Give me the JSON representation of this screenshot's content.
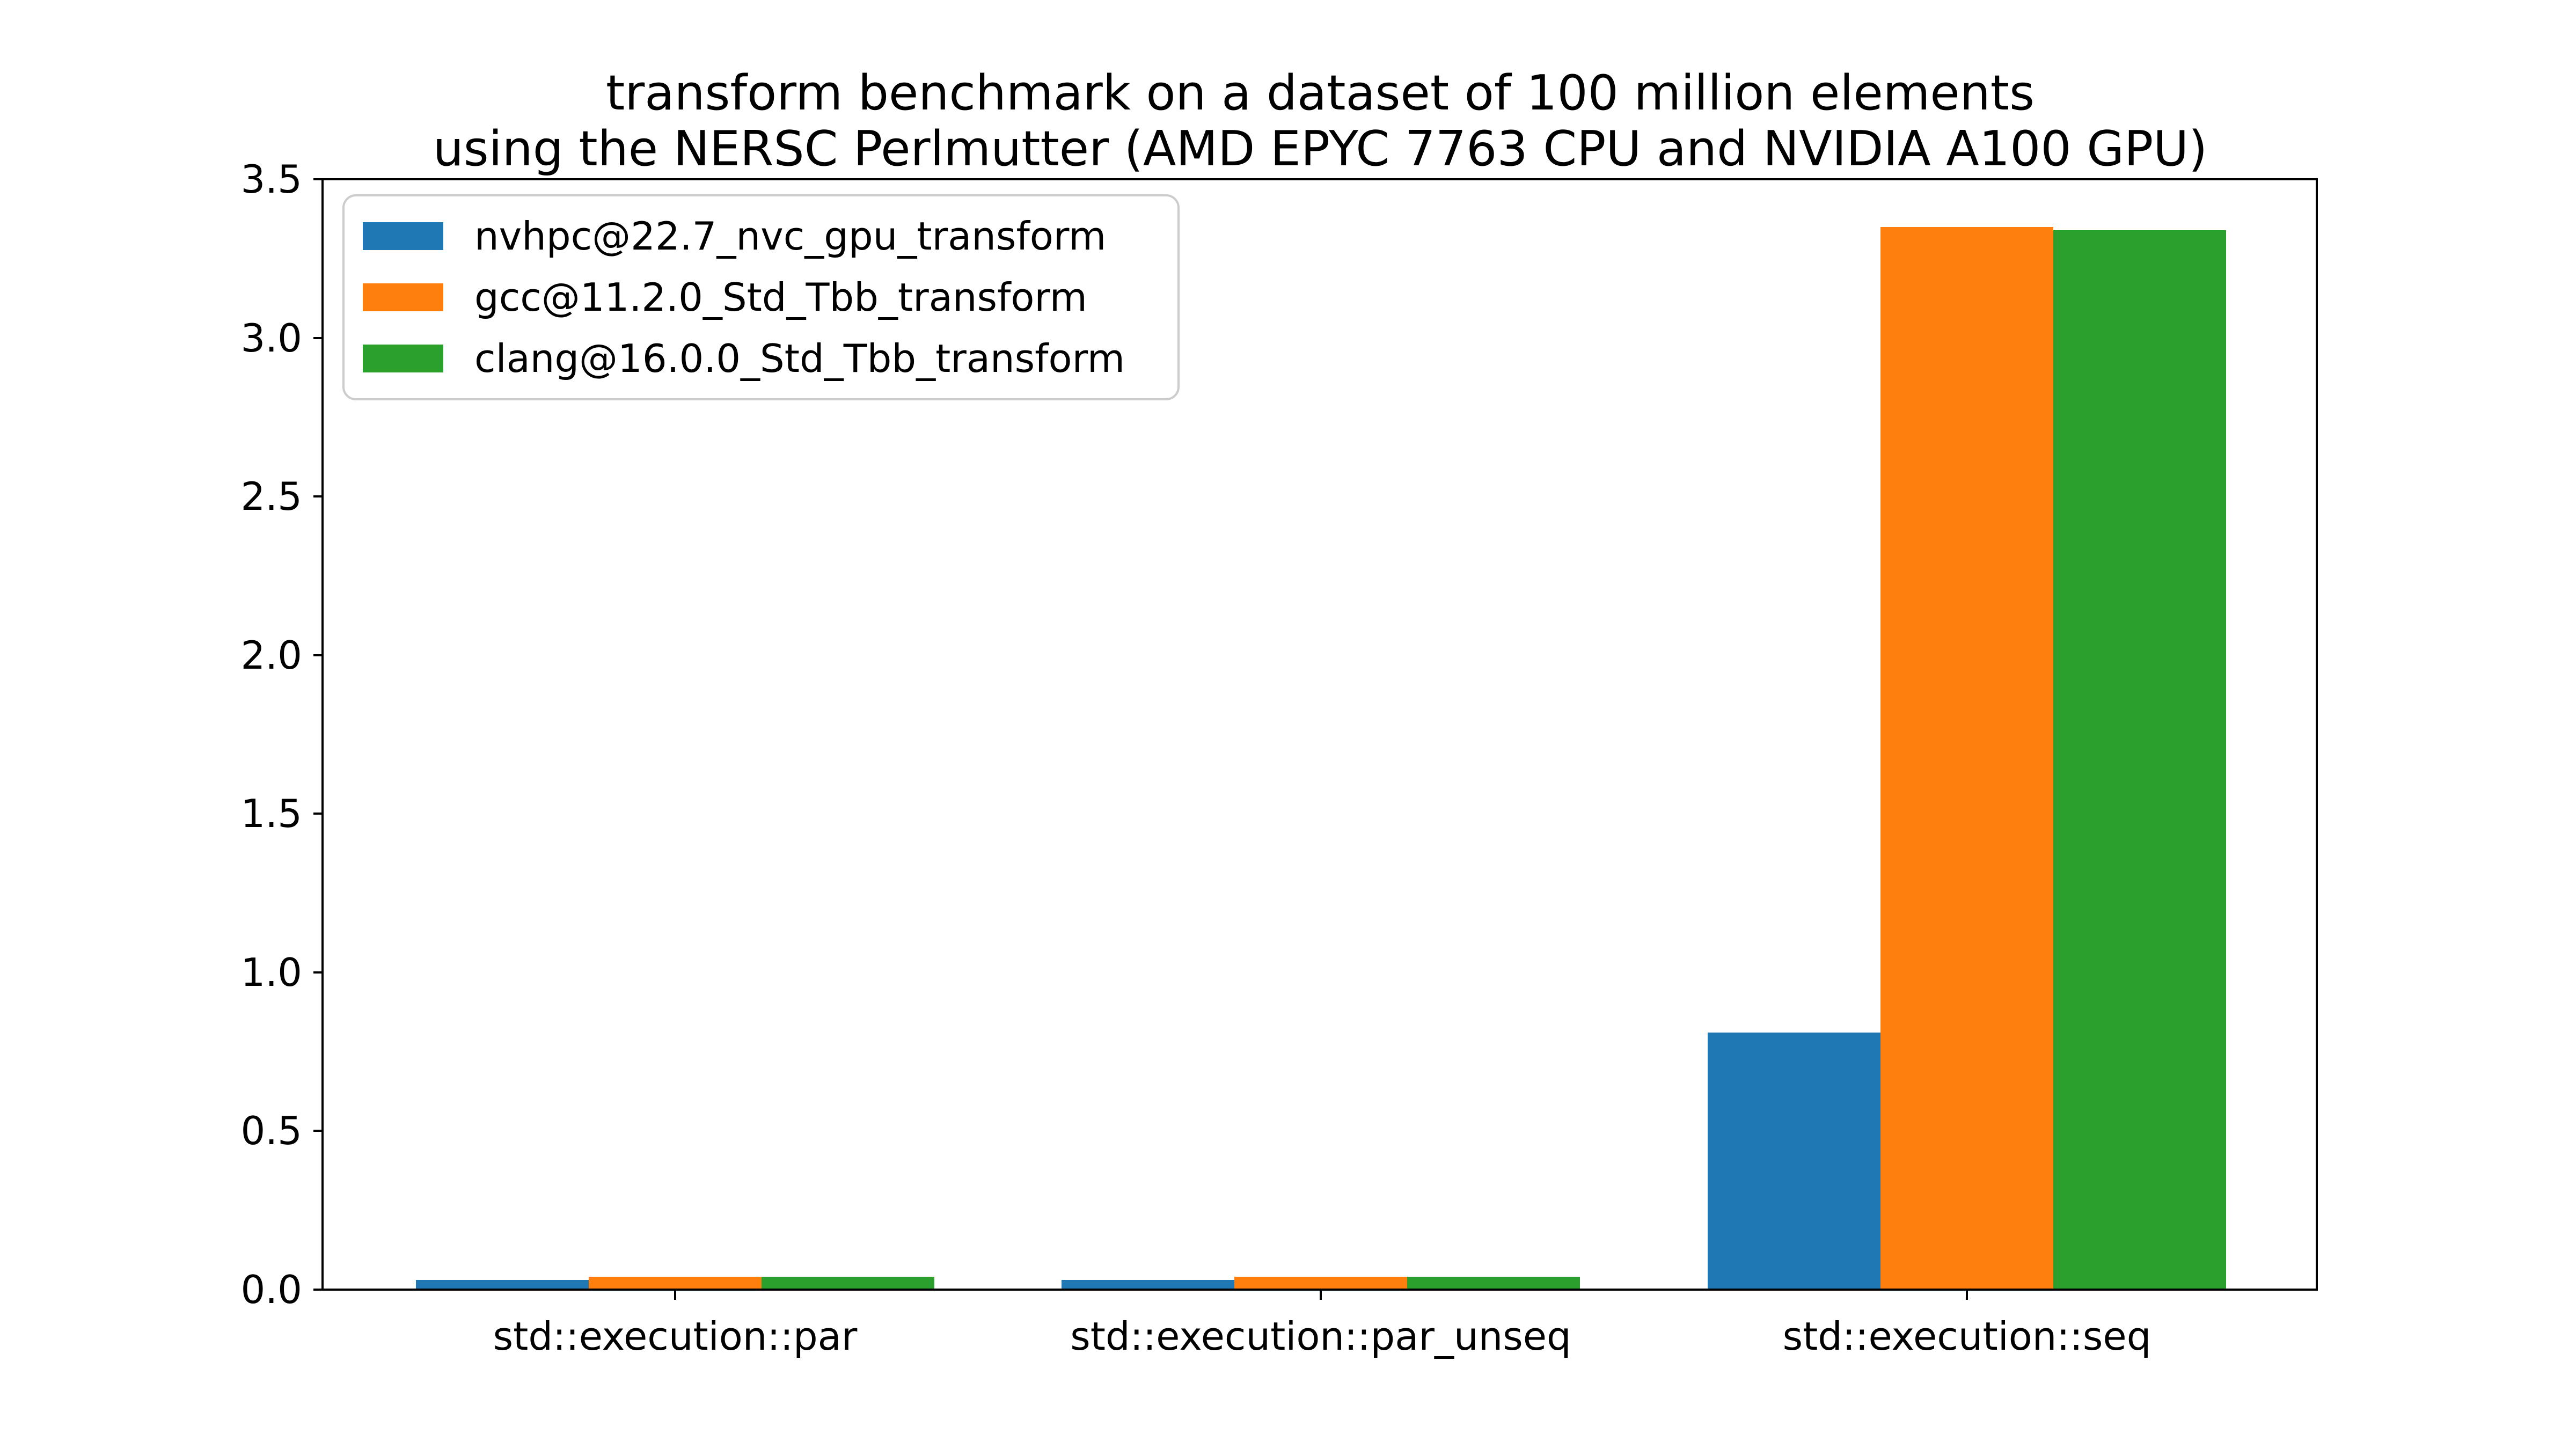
{
  "title": {
    "line1": "transform benchmark on a dataset of 100 million elements",
    "line2": "using the NERSC Perlmutter (AMD EPYC 7763 CPU and NVIDIA A100 GPU)"
  },
  "chart_data": {
    "type": "bar",
    "title": "transform benchmark on a dataset of 100 million elements\nusing the NERSC Perlmutter (AMD EPYC 7763 CPU and NVIDIA A100 GPU)",
    "categories": [
      "std::execution::par",
      "std::execution::par_unseq",
      "std::execution::seq"
    ],
    "series": [
      {
        "name": "nvhpc@22.7_nvc_gpu_transform",
        "color": "#1f77b4",
        "values": [
          0.03,
          0.03,
          0.81
        ]
      },
      {
        "name": "gcc@11.2.0_Std_Tbb_transform",
        "color": "#ff7f0e",
        "values": [
          0.04,
          0.04,
          3.35
        ]
      },
      {
        "name": "clang@16.0.0_Std_Tbb_transform",
        "color": "#2ca02c",
        "values": [
          0.04,
          0.04,
          3.34
        ]
      }
    ],
    "xlabel": "",
    "ylabel": "",
    "ylim": [
      0.0,
      3.5
    ],
    "yticks": [
      0.0,
      0.5,
      1.0,
      1.5,
      2.0,
      2.5,
      3.0,
      3.5
    ],
    "yticklabels": [
      "0.0",
      "0.5",
      "1.0",
      "1.5",
      "2.0",
      "2.5",
      "3.0",
      "3.5"
    ],
    "grid": false,
    "legend_position": "upper left",
    "bar_group_width_fraction": 0.8
  }
}
